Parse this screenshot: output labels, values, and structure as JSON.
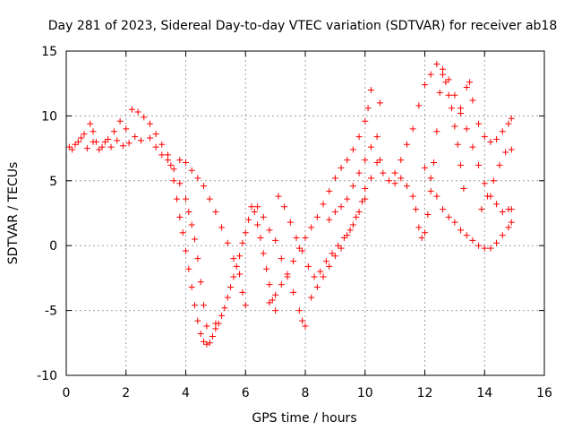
{
  "chart_data": {
    "type": "scatter",
    "title": "Day 281 of 2023, Sidereal Day-to-day VTEC variation (SDTVAR) for receiver ab18",
    "xlabel": "GPS time / hours",
    "ylabel": "SDTVAR / TECUs",
    "xlim": [
      0,
      16
    ],
    "ylim": [
      -10,
      15
    ],
    "xticks": [
      0,
      2,
      4,
      6,
      8,
      10,
      12,
      14,
      16
    ],
    "yticks": [
      -10,
      -5,
      0,
      5,
      10,
      15
    ],
    "grid": true,
    "marker": "+",
    "color": "#ff0000",
    "series": [
      {
        "name": "trace-1",
        "points": [
          [
            0.1,
            7.6
          ],
          [
            0.3,
            7.8
          ],
          [
            0.5,
            8.3
          ],
          [
            0.7,
            7.5
          ],
          [
            0.9,
            8.0
          ],
          [
            1.1,
            7.4
          ],
          [
            1.3,
            8.0
          ],
          [
            1.5,
            7.6
          ],
          [
            1.7,
            8.1
          ],
          [
            1.9,
            7.7
          ],
          [
            2.1,
            7.9
          ],
          [
            2.3,
            8.4
          ],
          [
            2.5,
            8.1
          ],
          [
            2.8,
            8.3
          ],
          [
            3.0,
            7.6
          ],
          [
            3.2,
            7.0
          ],
          [
            3.4,
            6.6
          ],
          [
            3.6,
            5.9
          ],
          [
            3.8,
            4.8
          ],
          [
            4.0,
            3.6
          ],
          [
            4.1,
            2.6
          ],
          [
            4.2,
            1.6
          ],
          [
            4.3,
            0.5
          ],
          [
            4.4,
            -1.0
          ],
          [
            4.5,
            -2.8
          ],
          [
            4.6,
            -4.6
          ],
          [
            4.7,
            -6.2
          ],
          [
            4.8,
            -7.5
          ],
          [
            4.9,
            -7.0
          ],
          [
            5.0,
            -6.0
          ]
        ]
      },
      {
        "name": "trace-2",
        "points": [
          [
            0.2,
            7.4
          ],
          [
            0.4,
            8.0
          ],
          [
            0.6,
            8.6
          ],
          [
            0.8,
            9.4
          ],
          [
            0.9,
            8.8
          ],
          [
            1.0,
            8.0
          ],
          [
            1.2,
            7.6
          ],
          [
            1.4,
            8.2
          ],
          [
            1.6,
            8.8
          ],
          [
            1.8,
            9.6
          ],
          [
            2.0,
            9.0
          ],
          [
            2.2,
            10.5
          ],
          [
            2.4,
            10.3
          ],
          [
            2.6,
            9.9
          ],
          [
            2.8,
            9.4
          ],
          [
            3.0,
            8.6
          ],
          [
            3.2,
            7.8
          ],
          [
            3.4,
            7.0
          ],
          [
            3.5,
            6.2
          ],
          [
            3.6,
            5.0
          ],
          [
            3.7,
            3.6
          ],
          [
            3.8,
            2.2
          ],
          [
            3.9,
            1.0
          ],
          [
            4.0,
            -0.4
          ],
          [
            4.1,
            -1.8
          ],
          [
            4.2,
            -3.2
          ],
          [
            4.3,
            -4.6
          ],
          [
            4.4,
            -5.8
          ],
          [
            4.5,
            -6.8
          ],
          [
            4.6,
            -7.4
          ],
          [
            4.7,
            -7.6
          ]
        ]
      },
      {
        "name": "trace-3",
        "points": [
          [
            3.8,
            6.6
          ],
          [
            4.0,
            6.4
          ],
          [
            4.2,
            5.8
          ],
          [
            4.4,
            5.2
          ],
          [
            4.6,
            4.6
          ],
          [
            4.8,
            3.6
          ],
          [
            5.0,
            2.6
          ],
          [
            5.2,
            1.4
          ],
          [
            5.4,
            0.2
          ],
          [
            5.6,
            -1.0
          ],
          [
            5.8,
            -2.2
          ],
          [
            5.9,
            -3.6
          ],
          [
            6.0,
            -4.6
          ]
        ]
      },
      {
        "name": "trace-4",
        "points": [
          [
            5.0,
            -6.4
          ],
          [
            5.1,
            -6.0
          ],
          [
            5.2,
            -5.4
          ],
          [
            5.3,
            -4.8
          ],
          [
            5.4,
            -4.0
          ],
          [
            5.5,
            -3.2
          ],
          [
            5.6,
            -2.4
          ],
          [
            5.7,
            -1.6
          ],
          [
            5.8,
            -0.8
          ],
          [
            5.9,
            0.2
          ],
          [
            6.0,
            1.0
          ],
          [
            6.1,
            2.0
          ],
          [
            6.2,
            3.0
          ],
          [
            6.3,
            2.6
          ],
          [
            6.4,
            1.6
          ],
          [
            6.5,
            0.6
          ],
          [
            6.6,
            -0.6
          ],
          [
            6.7,
            -1.8
          ],
          [
            6.8,
            -3.0
          ],
          [
            6.9,
            -4.2
          ],
          [
            7.0,
            -5.0
          ]
        ]
      },
      {
        "name": "trace-5",
        "points": [
          [
            6.4,
            3.0
          ],
          [
            6.6,
            2.2
          ],
          [
            6.8,
            1.2
          ],
          [
            7.0,
            0.4
          ],
          [
            7.2,
            -1.0
          ],
          [
            7.4,
            -2.4
          ],
          [
            7.6,
            -3.6
          ],
          [
            7.8,
            -5.0
          ],
          [
            7.9,
            -5.8
          ],
          [
            8.0,
            -6.2
          ]
        ]
      },
      {
        "name": "trace-6",
        "points": [
          [
            6.8,
            -4.4
          ],
          [
            7.0,
            -3.8
          ],
          [
            7.2,
            -3.0
          ],
          [
            7.4,
            -2.2
          ],
          [
            7.6,
            -1.2
          ],
          [
            7.8,
            -0.2
          ],
          [
            8.0,
            0.6
          ],
          [
            8.2,
            1.4
          ],
          [
            8.4,
            2.2
          ],
          [
            8.6,
            3.2
          ],
          [
            8.8,
            4.2
          ],
          [
            9.0,
            5.2
          ],
          [
            9.2,
            6.0
          ],
          [
            9.4,
            6.6
          ],
          [
            9.6,
            7.4
          ],
          [
            9.8,
            8.4
          ],
          [
            10.0,
            9.6
          ],
          [
            10.1,
            10.6
          ],
          [
            10.2,
            12.0
          ]
        ]
      },
      {
        "name": "trace-7",
        "points": [
          [
            7.1,
            3.8
          ],
          [
            7.3,
            3.0
          ],
          [
            7.5,
            1.8
          ],
          [
            7.7,
            0.6
          ],
          [
            7.9,
            -0.4
          ],
          [
            8.1,
            -1.6
          ],
          [
            8.3,
            -2.4
          ],
          [
            8.5,
            -2.0
          ],
          [
            8.7,
            -1.2
          ],
          [
            8.9,
            -0.6
          ],
          [
            9.1,
            0.0
          ],
          [
            9.3,
            0.6
          ],
          [
            9.5,
            1.2
          ],
          [
            9.7,
            2.2
          ],
          [
            9.9,
            3.4
          ],
          [
            10.0,
            4.4
          ]
        ]
      },
      {
        "name": "trace-8",
        "points": [
          [
            8.2,
            -4.0
          ],
          [
            8.4,
            -3.2
          ],
          [
            8.6,
            -2.4
          ],
          [
            8.8,
            -1.6
          ],
          [
            9.0,
            -0.8
          ],
          [
            9.2,
            -0.2
          ],
          [
            9.4,
            0.8
          ],
          [
            9.6,
            1.6
          ],
          [
            9.8,
            2.6
          ],
          [
            10.0,
            3.6
          ],
          [
            10.2,
            5.2
          ],
          [
            10.4,
            6.4
          ],
          [
            10.5,
            6.6
          ]
        ]
      },
      {
        "name": "trace-9",
        "points": [
          [
            8.8,
            2.0
          ],
          [
            9.0,
            2.6
          ],
          [
            9.2,
            3.0
          ],
          [
            9.4,
            3.6
          ],
          [
            9.6,
            4.6
          ],
          [
            9.8,
            5.6
          ],
          [
            10.0,
            6.6
          ],
          [
            10.2,
            7.6
          ],
          [
            10.4,
            8.4
          ],
          [
            10.5,
            11.0
          ]
        ]
      },
      {
        "name": "trace-10",
        "points": [
          [
            10.6,
            5.6
          ],
          [
            10.8,
            5.0
          ],
          [
            11.0,
            4.8
          ],
          [
            11.2,
            5.2
          ],
          [
            11.4,
            4.6
          ],
          [
            11.6,
            3.8
          ],
          [
            11.7,
            2.8
          ],
          [
            11.8,
            1.4
          ],
          [
            11.9,
            0.6
          ],
          [
            12.0,
            1.0
          ],
          [
            12.1,
            2.4
          ],
          [
            12.2,
            4.2
          ],
          [
            12.3,
            6.4
          ],
          [
            12.4,
            8.8
          ],
          [
            12.5,
            11.8
          ],
          [
            12.6,
            13.2
          ],
          [
            12.7,
            12.6
          ],
          [
            12.8,
            11.6
          ],
          [
            12.9,
            10.6
          ],
          [
            13.0,
            9.2
          ],
          [
            13.1,
            7.8
          ],
          [
            13.2,
            6.2
          ],
          [
            13.3,
            4.4
          ]
        ]
      },
      {
        "name": "trace-11",
        "points": [
          [
            11.0,
            5.6
          ],
          [
            11.2,
            6.6
          ],
          [
            11.4,
            7.8
          ],
          [
            11.6,
            9.0
          ],
          [
            11.8,
            10.8
          ],
          [
            12.0,
            12.4
          ],
          [
            12.2,
            13.2
          ],
          [
            12.4,
            14.0
          ],
          [
            12.6,
            13.6
          ],
          [
            12.8,
            12.8
          ],
          [
            13.0,
            11.6
          ],
          [
            13.2,
            10.2
          ],
          [
            13.4,
            9.0
          ],
          [
            13.6,
            7.6
          ],
          [
            13.8,
            6.2
          ],
          [
            14.0,
            4.8
          ],
          [
            14.2,
            3.8
          ],
          [
            14.4,
            3.2
          ],
          [
            14.6,
            2.6
          ],
          [
            14.8,
            2.8
          ],
          [
            14.9,
            2.8
          ]
        ]
      },
      {
        "name": "trace-12",
        "points": [
          [
            12.0,
            6.0
          ],
          [
            12.2,
            5.2
          ],
          [
            12.4,
            3.8
          ],
          [
            12.6,
            2.8
          ],
          [
            12.8,
            2.2
          ],
          [
            13.0,
            1.8
          ],
          [
            13.2,
            1.2
          ],
          [
            13.4,
            0.8
          ],
          [
            13.6,
            0.4
          ],
          [
            13.8,
            0.0
          ],
          [
            14.0,
            -0.2
          ],
          [
            14.2,
            -0.2
          ],
          [
            14.4,
            0.2
          ],
          [
            14.6,
            0.8
          ],
          [
            14.8,
            1.4
          ],
          [
            14.9,
            1.8
          ]
        ]
      },
      {
        "name": "trace-13",
        "points": [
          [
            13.2,
            10.6
          ],
          [
            13.4,
            12.2
          ],
          [
            13.5,
            12.6
          ],
          [
            13.6,
            11.2
          ],
          [
            13.8,
            9.4
          ],
          [
            14.0,
            8.4
          ],
          [
            14.2,
            8.0
          ],
          [
            14.4,
            8.2
          ],
          [
            14.6,
            8.8
          ],
          [
            14.8,
            9.4
          ],
          [
            14.9,
            9.8
          ]
        ]
      },
      {
        "name": "trace-14",
        "points": [
          [
            13.9,
            2.8
          ],
          [
            14.1,
            3.8
          ],
          [
            14.3,
            5.0
          ],
          [
            14.5,
            6.2
          ],
          [
            14.7,
            7.2
          ],
          [
            14.9,
            7.4
          ]
        ]
      }
    ]
  }
}
